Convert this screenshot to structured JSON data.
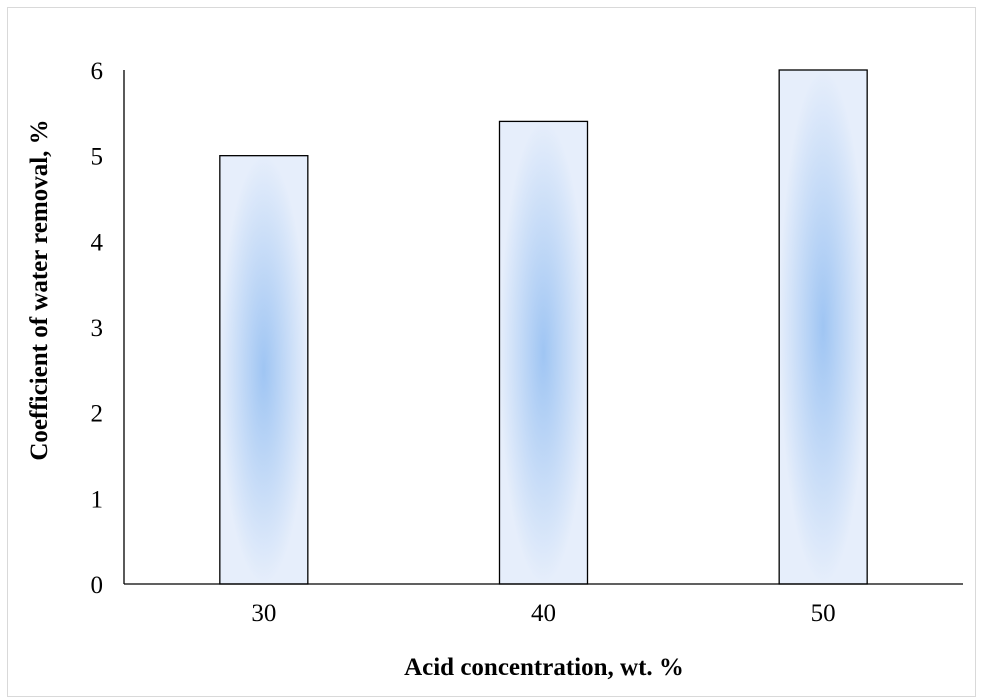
{
  "chart_data": {
    "type": "bar",
    "title": "",
    "xlabel": "Acid concentration, wt. %",
    "ylabel": "Coefficient of water removal, %",
    "categories": [
      "30",
      "40",
      "50"
    ],
    "values": [
      5.0,
      5.4,
      6.0
    ],
    "ylim": [
      0,
      6
    ],
    "yticks": [
      "0",
      "1",
      "2",
      "3",
      "4",
      "5",
      "6"
    ],
    "grid": false,
    "legend": "none",
    "bar_fill_center": "#9fc5f3",
    "bar_fill_edge": "#e6eefb",
    "bar_border": "#000000"
  }
}
